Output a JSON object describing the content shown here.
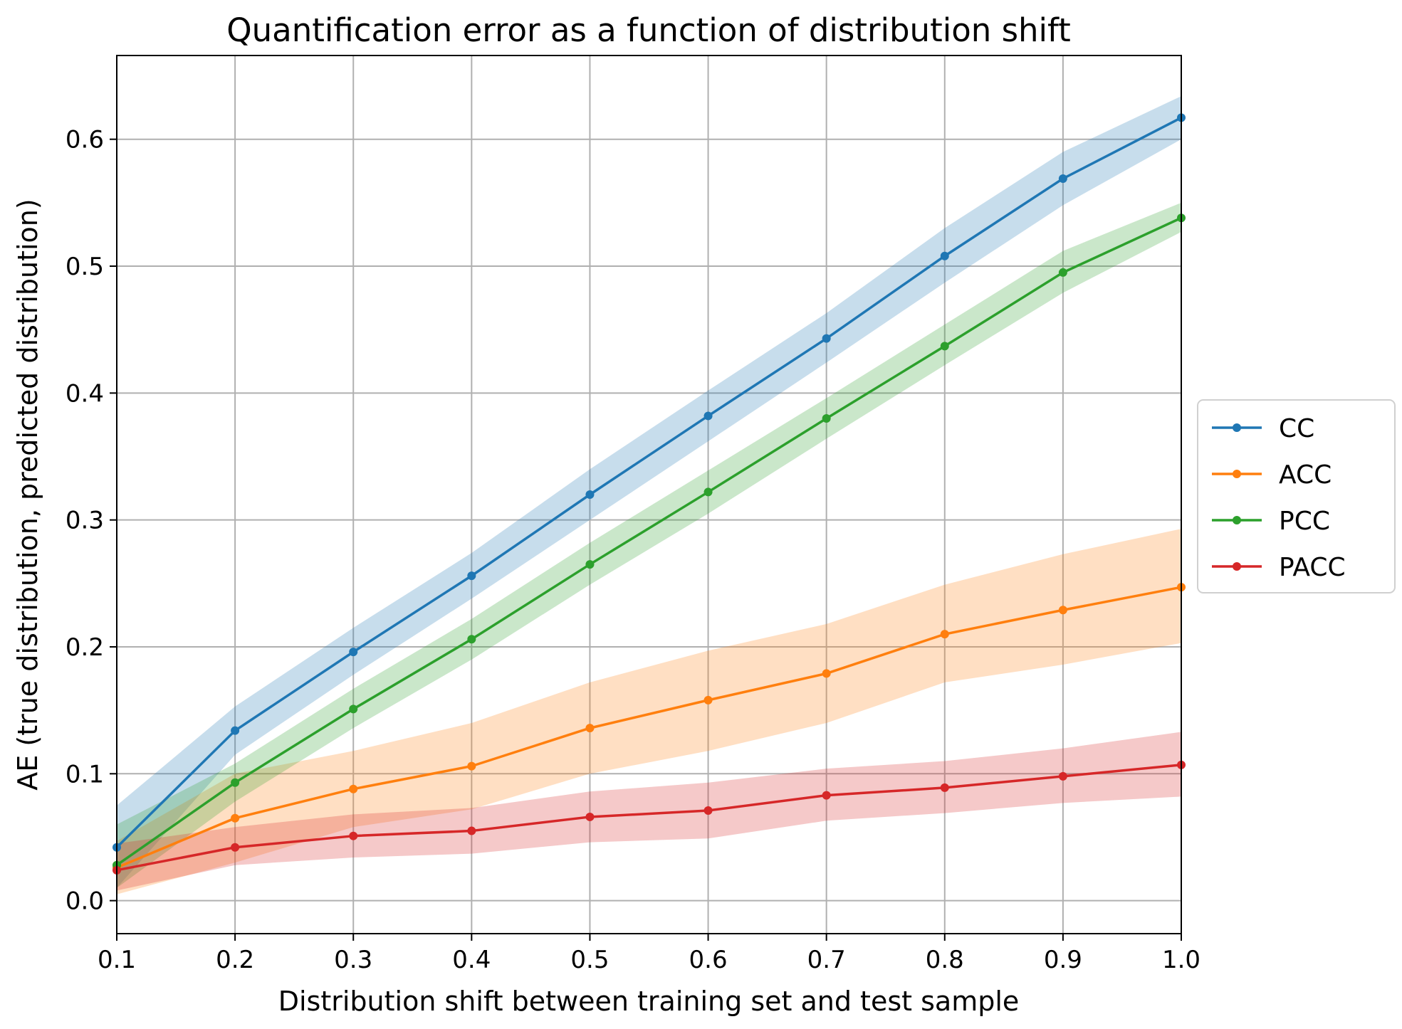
{
  "chart_data": {
    "type": "line",
    "title": "Quantification error as a function of distribution shift",
    "xlabel": "Distribution shift between training set and test sample",
    "ylabel": "AE (true distribution, predicted distribution)",
    "xlim": [
      0.1,
      1.0
    ],
    "ylim": [
      -0.026,
      0.666
    ],
    "xticks": [
      0.1,
      0.2,
      0.3,
      0.4,
      0.5,
      0.6,
      0.7,
      0.8,
      0.9,
      1.0
    ],
    "xtick_labels": [
      "0.1",
      "0.2",
      "0.3",
      "0.4",
      "0.5",
      "0.6",
      "0.7",
      "0.8",
      "0.9",
      "1.0"
    ],
    "yticks": [
      0.0,
      0.1,
      0.2,
      0.3,
      0.4,
      0.5,
      0.6
    ],
    "ytick_labels": [
      "0.0",
      "0.1",
      "0.2",
      "0.3",
      "0.4",
      "0.5",
      "0.6"
    ],
    "grid": true,
    "legend_placement": "outside-right",
    "x": [
      0.1,
      0.2,
      0.3,
      0.4,
      0.5,
      0.6,
      0.7,
      0.8,
      0.9,
      1.0
    ],
    "series": [
      {
        "name": "CC",
        "color": "#1f77b4",
        "values": [
          0.042,
          0.134,
          0.196,
          0.256,
          0.32,
          0.382,
          0.443,
          0.508,
          0.569,
          0.617
        ],
        "lower": [
          0.01,
          0.115,
          0.178,
          0.238,
          0.3,
          0.362,
          0.424,
          0.487,
          0.548,
          0.6
        ],
        "upper": [
          0.075,
          0.153,
          0.215,
          0.274,
          0.34,
          0.402,
          0.463,
          0.53,
          0.59,
          0.634
        ]
      },
      {
        "name": "ACC",
        "color": "#ff7f0e",
        "values": [
          0.026,
          0.065,
          0.088,
          0.106,
          0.136,
          0.158,
          0.179,
          0.21,
          0.229,
          0.247
        ],
        "lower": [
          0.005,
          0.03,
          0.058,
          0.072,
          0.1,
          0.118,
          0.14,
          0.172,
          0.186,
          0.203
        ],
        "upper": [
          0.047,
          0.1,
          0.118,
          0.14,
          0.172,
          0.197,
          0.218,
          0.249,
          0.273,
          0.293
        ]
      },
      {
        "name": "PCC",
        "color": "#2ca02c",
        "values": [
          0.028,
          0.093,
          0.151,
          0.206,
          0.265,
          0.322,
          0.38,
          0.437,
          0.495,
          0.538
        ],
        "lower": [
          0.01,
          0.078,
          0.136,
          0.19,
          0.249,
          0.305,
          0.364,
          0.422,
          0.479,
          0.527
        ],
        "upper": [
          0.06,
          0.108,
          0.167,
          0.222,
          0.282,
          0.339,
          0.396,
          0.454,
          0.512,
          0.55
        ]
      },
      {
        "name": "PACC",
        "color": "#d62728",
        "values": [
          0.024,
          0.042,
          0.051,
          0.055,
          0.066,
          0.071,
          0.083,
          0.089,
          0.098,
          0.107
        ],
        "lower": [
          0.008,
          0.028,
          0.034,
          0.037,
          0.046,
          0.049,
          0.063,
          0.069,
          0.077,
          0.082
        ],
        "upper": [
          0.045,
          0.058,
          0.068,
          0.073,
          0.086,
          0.093,
          0.104,
          0.11,
          0.12,
          0.133
        ]
      }
    ]
  }
}
